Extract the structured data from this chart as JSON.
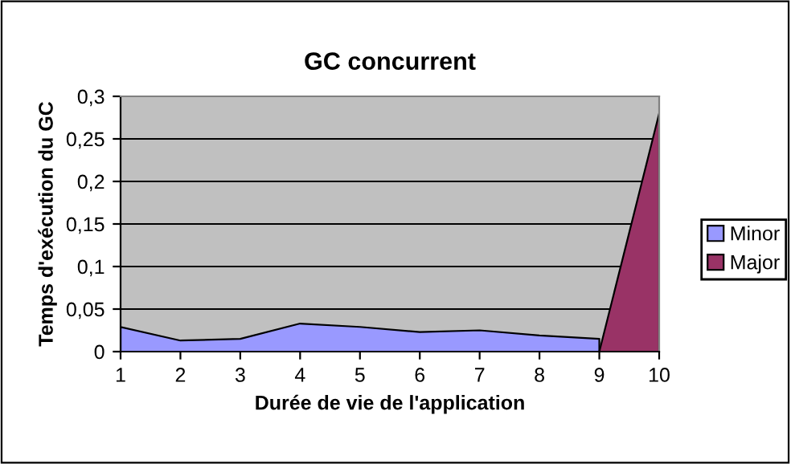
{
  "chart_data": {
    "type": "area",
    "title": "GC concurrent",
    "xlabel": "Durée de vie de l'application",
    "ylabel": "Temps d'exécution du GC",
    "x": [
      1,
      2,
      3,
      4,
      5,
      6,
      7,
      8,
      9,
      10
    ],
    "series": [
      {
        "name": "Minor",
        "color": "#9999ff",
        "values": [
          0.029,
          0.013,
          0.015,
          0.033,
          0.029,
          0.023,
          0.025,
          0.019,
          0.015,
          null
        ]
      },
      {
        "name": "Major",
        "color": "#993366",
        "values": [
          null,
          null,
          null,
          null,
          null,
          null,
          null,
          null,
          0,
          0.28
        ]
      }
    ],
    "xlim": [
      1,
      10
    ],
    "xticks": [
      1,
      2,
      3,
      4,
      5,
      6,
      7,
      8,
      9,
      10
    ],
    "ylim": [
      0,
      0.3
    ],
    "yticks": [
      0,
      {
        "value": 0.05,
        "label": "0,05"
      },
      {
        "value": 0.1,
        "label": "0,1"
      },
      {
        "value": 0.15,
        "label": "0,15"
      },
      {
        "value": 0.2,
        "label": "0,2"
      },
      {
        "value": 0.25,
        "label": "0,25"
      },
      {
        "value": 0.3,
        "label": "0,3"
      }
    ],
    "grid": "y",
    "legend": "right"
  }
}
